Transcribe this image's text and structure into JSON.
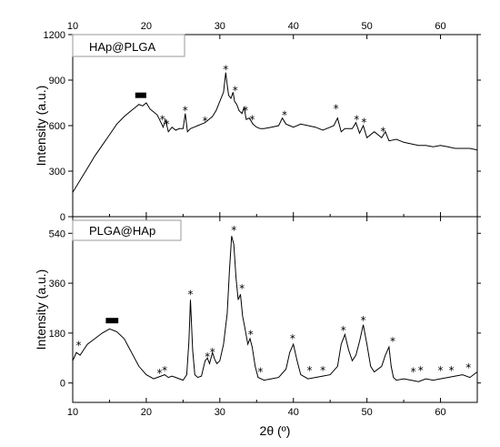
{
  "chart_data": [
    {
      "type": "line",
      "panel": "top",
      "legend": "HAp@PLGA",
      "xlim": [
        10,
        65
      ],
      "ylim": [
        0,
        1200
      ],
      "x_ticks": [
        10,
        20,
        30,
        40,
        50,
        60
      ],
      "x_tick_labels": [
        "10",
        "20",
        "30",
        "40",
        "50",
        "60"
      ],
      "y_ticks": [
        0,
        300,
        600,
        900,
        1200
      ],
      "y_tick_labels": [
        "0",
        "300",
        "600",
        "900",
        "1200"
      ],
      "ylabel": "Intensity (a.u.)",
      "xlabel": "",
      "series": [
        {
          "x": [
            10,
            11,
            12,
            13,
            14,
            15,
            16,
            17,
            18,
            18.5,
            19,
            19.5,
            20,
            20.5,
            21,
            21.5,
            22,
            22.3,
            22.6,
            23,
            23.5,
            24,
            24.5,
            25,
            25.3,
            25.6,
            26,
            26.5,
            27,
            27.5,
            28,
            28.5,
            29,
            29.5,
            30,
            30.5,
            30.8,
            31,
            31.2,
            31.5,
            31.8,
            32,
            32.3,
            32.6,
            33,
            33.3,
            33.6,
            34,
            34.5,
            35,
            35.5,
            36,
            37,
            38,
            38.5,
            39,
            39.5,
            40,
            41,
            42,
            43,
            44,
            45,
            45.5,
            46,
            46.5,
            47,
            48,
            48.5,
            49,
            49.5,
            50,
            51,
            52,
            52.5,
            53,
            54,
            55,
            56,
            57,
            58,
            59,
            60,
            61,
            62,
            63,
            64,
            65
          ],
          "y": [
            160,
            240,
            320,
            400,
            470,
            540,
            610,
            660,
            700,
            720,
            740,
            730,
            750,
            710,
            690,
            670,
            620,
            590,
            640,
            560,
            590,
            570,
            580,
            580,
            680,
            560,
            580,
            590,
            600,
            610,
            620,
            640,
            660,
            700,
            760,
            820,
            950,
            870,
            800,
            780,
            820,
            760,
            740,
            700,
            680,
            720,
            640,
            650,
            610,
            590,
            580,
            580,
            590,
            600,
            650,
            610,
            600,
            590,
            610,
            600,
            590,
            570,
            590,
            600,
            650,
            560,
            580,
            580,
            620,
            550,
            600,
            520,
            560,
            520,
            560,
            500,
            510,
            490,
            480,
            470,
            470,
            460,
            470,
            460,
            450,
            450,
            450,
            440
          ]
        }
      ],
      "markers": {
        "star_x": [
          22.2,
          22.8,
          25.3,
          28.0,
          30.8,
          32.1,
          33.5,
          34.4,
          38.8,
          45.8,
          48.6,
          49.6,
          52.2
        ],
        "star_y": [
          640,
          610,
          700,
          630,
          970,
          830,
          700,
          640,
          670,
          710,
          640,
          620,
          560
        ],
        "bar_x": [
          18.5,
          20.0
        ],
        "bar_y": 800
      }
    },
    {
      "type": "line",
      "panel": "bottom",
      "legend": "PLGA@HAp",
      "xlim": [
        10,
        65
      ],
      "ylim": [
        -70,
        600
      ],
      "x_ticks": [
        10,
        20,
        30,
        40,
        50,
        60
      ],
      "x_tick_labels": [
        "10",
        "20",
        "30",
        "40",
        "50",
        "60"
      ],
      "y_ticks": [
        0,
        180,
        360,
        540
      ],
      "y_tick_labels": [
        "0",
        "180",
        "360",
        "540"
      ],
      "ylabel": "Intensity (a.u.)",
      "xlabel": "2θ (º)",
      "series": [
        {
          "x": [
            10,
            10.5,
            11,
            11.5,
            12,
            13,
            14,
            15,
            16,
            17,
            18,
            19,
            20,
            21,
            21.5,
            22,
            22.5,
            23,
            23.5,
            24,
            24.5,
            25,
            25.5,
            25.8,
            26,
            26.3,
            26.6,
            27,
            27.5,
            28,
            28.3,
            28.6,
            29,
            29.3,
            29.6,
            30,
            30.5,
            31,
            31.3,
            31.6,
            31.9,
            32.2,
            32.5,
            32.8,
            33.1,
            33.4,
            33.8,
            34.1,
            34.4,
            34.8,
            35.2,
            35.6,
            36,
            37,
            38,
            39,
            39.5,
            40,
            40.5,
            41,
            42,
            43,
            44,
            45,
            46,
            46.5,
            47,
            47.5,
            48,
            48.5,
            49,
            49.5,
            50,
            50.5,
            51,
            52,
            52.5,
            53,
            53.3,
            53.6,
            54,
            55,
            56,
            57,
            58,
            59,
            60,
            61,
            62,
            63,
            64,
            65
          ],
          "y": [
            80,
            110,
            100,
            120,
            140,
            160,
            180,
            195,
            185,
            160,
            110,
            60,
            30,
            15,
            20,
            25,
            30,
            20,
            25,
            20,
            15,
            10,
            30,
            150,
            300,
            120,
            30,
            20,
            25,
            80,
            90,
            70,
            110,
            85,
            70,
            80,
            140,
            250,
            400,
            530,
            500,
            380,
            300,
            320,
            240,
            200,
            140,
            160,
            130,
            60,
            20,
            15,
            10,
            15,
            20,
            50,
            110,
            140,
            80,
            30,
            15,
            20,
            25,
            30,
            60,
            140,
            175,
            120,
            80,
            100,
            150,
            210,
            140,
            60,
            40,
            60,
            100,
            130,
            60,
            20,
            10,
            15,
            10,
            5,
            15,
            10,
            15,
            20,
            25,
            30,
            20,
            40
          ]
        }
      ],
      "markers": {
        "star_x": [
          10.8,
          21.8,
          22.5,
          26.0,
          28.3,
          29.0,
          31.9,
          33.0,
          34.2,
          35.5,
          39.9,
          42.2,
          44.0,
          46.8,
          49.5,
          53.5,
          56.3,
          57.3,
          60.0,
          61.5,
          63.8
        ],
        "star_y": [
          135,
          35,
          45,
          320,
          95,
          110,
          550,
          340,
          175,
          40,
          160,
          45,
          45,
          190,
          225,
          150,
          40,
          45,
          45,
          45,
          55
        ],
        "bar_x": [
          14.5,
          16.2
        ],
        "bar_y": 225
      }
    }
  ]
}
